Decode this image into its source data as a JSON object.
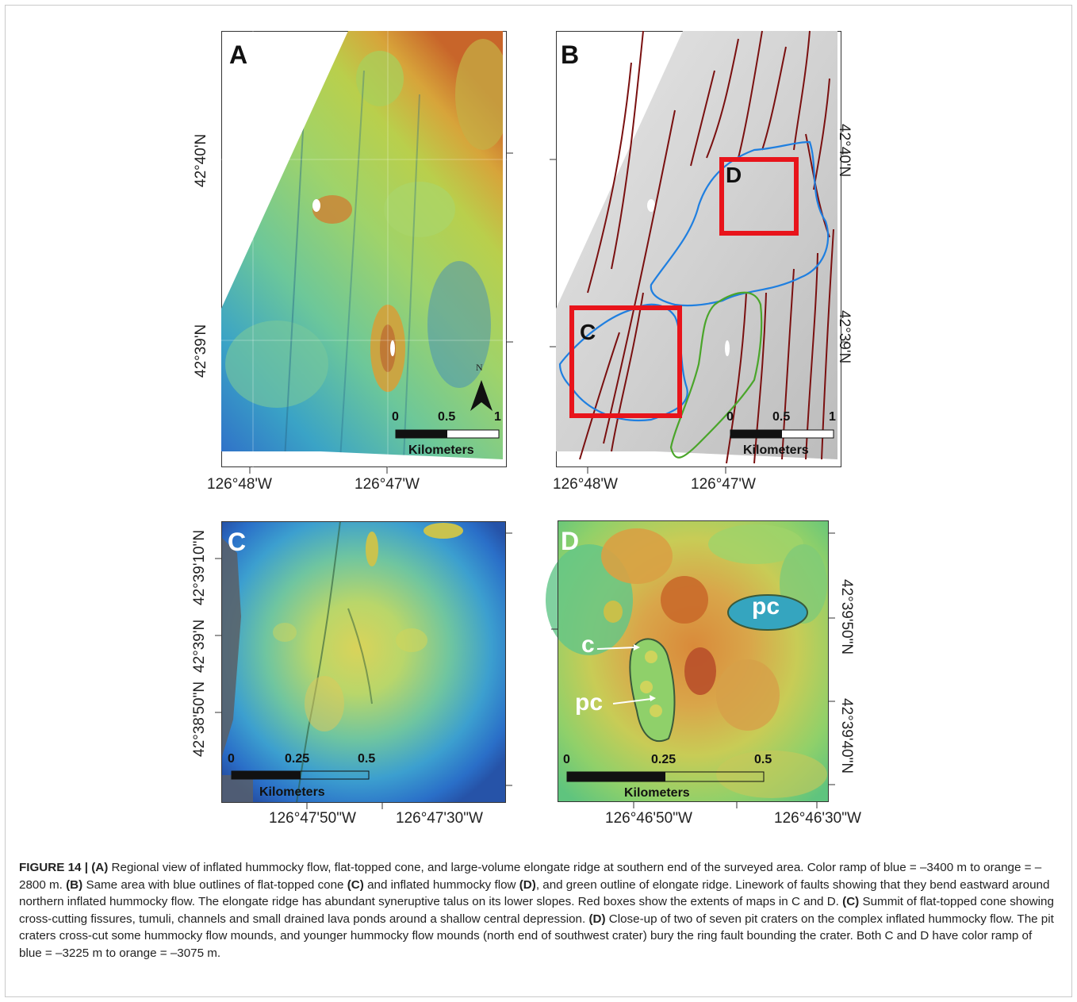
{
  "panels": {
    "A": {
      "letter": "A",
      "lat_labels": [
        "42°40'N",
        "42°39'N"
      ],
      "lon_labels": [
        "126°48'W",
        "126°47'W"
      ],
      "scale": {
        "ticks": [
          "0",
          "0.5",
          "1"
        ],
        "unit": "Kilometers"
      },
      "north": "N"
    },
    "B": {
      "letter": "B",
      "lat_labels": [
        "42°40'N",
        "42°39'N"
      ],
      "lon_labels": [
        "126°48'W",
        "126°47'W"
      ],
      "scale": {
        "ticks": [
          "0",
          "0.5",
          "1"
        ],
        "unit": "Kilometers"
      },
      "box_labels": [
        "C",
        "D"
      ]
    },
    "C": {
      "letter": "C",
      "lat_labels": [
        "42°39'10\"N",
        "42°39'N",
        "42°38'50\"N"
      ],
      "lon_labels": [
        "126°47'50\"W",
        "126°47'30\"W"
      ],
      "scale": {
        "ticks": [
          "0",
          "0.25",
          "0.5"
        ],
        "unit": "Kilometers"
      }
    },
    "D": {
      "letter": "D",
      "lat_labels": [
        "42°39'50\"N",
        "42°39'40\"N"
      ],
      "lon_labels": [
        "126°46'50\"W",
        "126°46'30\"W"
      ],
      "scale": {
        "ticks": [
          "0",
          "0.25",
          "0.5"
        ],
        "unit": "Kilometers"
      },
      "callouts": [
        "pc",
        "c",
        "pc"
      ]
    }
  },
  "colors": {
    "fault": "#7a1010",
    "blue_outline": "#1f7fe0",
    "green_outline": "#4aa52a",
    "red_box": "#e8141b",
    "deep": "#2a5fc0",
    "shallow": "#e07a1c"
  },
  "caption": {
    "figure": "FIGURE 14 |",
    "A_tag": "(A)",
    "A_text": "Regional view of inflated hummocky flow, flat-topped cone, and large-volume elongate ridge at southern end of the surveyed area. Color ramp of blue = –3400 m to orange = –2800 m.",
    "B_tag": "(B)",
    "B_text1": "Same area with blue outlines of flat-topped cone",
    "B_ref_C": "(C)",
    "B_text2": "and inflated hummocky flow",
    "B_ref_D": "(D)",
    "B_text3": ", and green outline of elongate ridge. Linework of faults showing that they bend eastward around northern inflated hummocky flow. The elongate ridge has abundant syneruptive talus on its lower slopes. Red boxes show the extents of maps in C and D.",
    "C_tag": "(C)",
    "C_text": "Summit of flat-topped cone showing cross-cutting fissures, tumuli, channels and small drained lava ponds around a shallow central depression.",
    "D_tag": "(D)",
    "D_text": "Close-up of two of seven pit craters on the complex inflated hummocky flow. The pit craters cross-cut some hummocky flow mounds, and younger hummocky flow mounds (north end of southwest crater) bury the ring fault bounding the crater. Both C and D have color ramp of blue = –3225 m to orange = –3075 m."
  }
}
